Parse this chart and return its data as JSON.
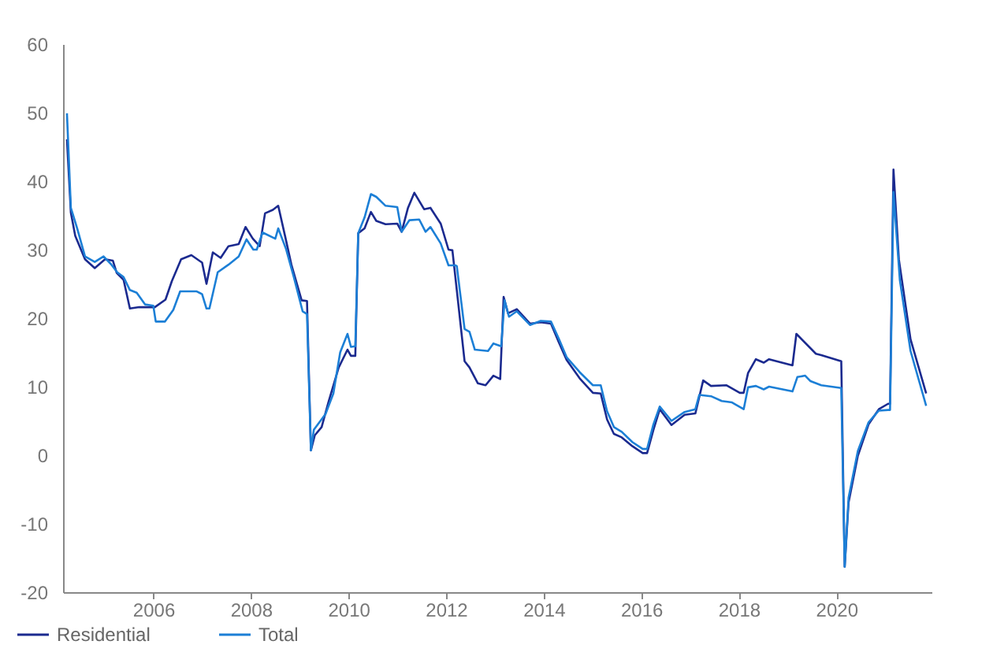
{
  "chart_data": {
    "type": "line",
    "xlim": [
      2004.15,
      2021.95
    ],
    "xticks": [
      2006,
      2008,
      2010,
      2012,
      2014,
      2016,
      2018,
      2020
    ],
    "ylim": [
      -20,
      60
    ],
    "yticks": [
      -20,
      -10,
      0,
      10,
      20,
      30,
      40,
      50,
      60
    ],
    "grid": false,
    "legend": "bottom left",
    "marker": "none",
    "line_style": "solid",
    "series": [
      {
        "name": "Residential",
        "color": "#1b2a8f",
        "x": [
          2004.23,
          2004.31,
          2004.4,
          2004.6,
          2004.8,
          2005.01,
          2005.17,
          2005.25,
          2005.39,
          2005.52,
          2005.71,
          2006.03,
          2006.25,
          2006.38,
          2006.57,
          2006.78,
          2007.0,
          2007.09,
          2007.22,
          2007.38,
          2007.54,
          2007.75,
          2007.89,
          2008.04,
          2008.18,
          2008.29,
          2008.45,
          2008.56,
          2008.7,
          2008.83,
          2009.04,
          2009.15,
          2009.23,
          2009.31,
          2009.45,
          2009.58,
          2009.8,
          2009.98,
          2010.05,
          2010.14,
          2010.2,
          2010.33,
          2010.46,
          2010.57,
          2010.76,
          2011.0,
          2011.09,
          2011.22,
          2011.35,
          2011.55,
          2011.68,
          2011.89,
          2012.05,
          2012.13,
          2012.22,
          2012.38,
          2012.48,
          2012.65,
          2012.81,
          2012.97,
          2013.11,
          2013.18,
          2013.27,
          2013.45,
          2013.72,
          2013.94,
          2014.15,
          2014.31,
          2014.47,
          2014.74,
          2015.01,
          2015.17,
          2015.3,
          2015.44,
          2015.6,
          2015.82,
          2016.03,
          2016.12,
          2016.25,
          2016.38,
          2016.62,
          2016.89,
          2017.11,
          2017.27,
          2017.43,
          2017.75,
          2018.02,
          2018.1,
          2018.19,
          2018.35,
          2018.51,
          2018.62,
          2019.1,
          2019.18,
          2019.58,
          2019.69,
          2020.1,
          2020.17,
          2020.25,
          2020.44,
          2020.66,
          2020.87,
          2021.06,
          2021.1,
          2021.17,
          2021.28,
          2021.52,
          2021.84
        ],
        "values": [
          46.1,
          35.4,
          32.0,
          28.6,
          27.3,
          28.6,
          28.4,
          26.6,
          25.6,
          21.4,
          21.6,
          21.6,
          22.7,
          25.4,
          28.6,
          29.2,
          28.1,
          25.0,
          29.6,
          28.8,
          30.5,
          30.8,
          33.3,
          31.6,
          30.5,
          35.3,
          35.8,
          36.4,
          32.0,
          27.8,
          22.6,
          22.5,
          0.7,
          2.9,
          4.1,
          7.5,
          12.8,
          15.4,
          14.5,
          14.5,
          32.4,
          33.1,
          35.5,
          34.2,
          33.7,
          33.8,
          32.6,
          36.1,
          38.3,
          35.9,
          36.1,
          33.8,
          30.0,
          29.9,
          24.1,
          13.7,
          12.8,
          10.5,
          10.2,
          11.6,
          11.1,
          23.1,
          20.7,
          21.3,
          19.2,
          19.4,
          19.2,
          16.5,
          13.9,
          11.2,
          9.1,
          9.0,
          5.2,
          3.1,
          2.6,
          1.3,
          0.3,
          0.3,
          3.7,
          6.7,
          4.4,
          5.9,
          6.1,
          10.9,
          10.1,
          10.2,
          9.1,
          9.1,
          12.0,
          14.0,
          13.5,
          14.0,
          13.1,
          17.7,
          14.8,
          14.6,
          13.7,
          -16.3,
          -6.9,
          -0.1,
          4.5,
          6.7,
          7.5,
          7.5,
          41.7,
          28.6,
          16.9,
          9.0
        ]
      },
      {
        "name": "Total",
        "color": "#1c7fd6",
        "x": [
          2004.23,
          2004.31,
          2004.44,
          2004.6,
          2004.8,
          2004.98,
          2005.13,
          2005.26,
          2005.39,
          2005.52,
          2005.66,
          2005.83,
          2006.0,
          2006.05,
          2006.24,
          2006.41,
          2006.55,
          2006.89,
          2007.0,
          2007.09,
          2007.15,
          2007.32,
          2007.54,
          2007.75,
          2007.91,
          2008.05,
          2008.12,
          2008.24,
          2008.5,
          2008.56,
          2008.72,
          2008.88,
          2009.06,
          2009.15,
          2009.23,
          2009.29,
          2009.53,
          2009.69,
          2009.83,
          2009.98,
          2010.05,
          2010.14,
          2010.2,
          2010.33,
          2010.46,
          2010.57,
          2010.76,
          2011.0,
          2011.09,
          2011.25,
          2011.45,
          2011.58,
          2011.68,
          2011.89,
          2012.05,
          2012.19,
          2012.22,
          2012.38,
          2012.48,
          2012.59,
          2012.86,
          2012.97,
          2013.13,
          2013.2,
          2013.29,
          2013.45,
          2013.72,
          2013.94,
          2014.15,
          2014.31,
          2014.47,
          2014.74,
          2015.01,
          2015.17,
          2015.3,
          2015.44,
          2015.6,
          2015.82,
          2016.03,
          2016.12,
          2016.25,
          2016.38,
          2016.62,
          2016.89,
          2017.11,
          2017.19,
          2017.43,
          2017.65,
          2017.86,
          2018.1,
          2018.19,
          2018.35,
          2018.51,
          2018.62,
          2019.1,
          2019.2,
          2019.36,
          2019.47,
          2019.69,
          2020.1,
          2020.17,
          2020.25,
          2020.44,
          2020.66,
          2020.87,
          2021.06,
          2021.1,
          2021.17,
          2021.3,
          2021.52,
          2021.84
        ],
        "values": [
          49.9,
          36.1,
          33.1,
          29.0,
          28.2,
          29.0,
          27.9,
          26.7,
          26.0,
          24.1,
          23.7,
          22.0,
          21.8,
          19.5,
          19.5,
          21.2,
          23.9,
          23.9,
          23.5,
          21.4,
          21.4,
          26.7,
          27.8,
          29.0,
          31.5,
          30.0,
          30.0,
          32.5,
          31.6,
          33.1,
          30.1,
          26.0,
          21.0,
          20.6,
          0.7,
          3.7,
          6.0,
          9.0,
          15.0,
          17.7,
          15.8,
          15.9,
          32.4,
          34.7,
          38.1,
          37.7,
          36.4,
          36.2,
          32.6,
          34.3,
          34.4,
          32.6,
          33.3,
          30.9,
          27.7,
          27.7,
          27.6,
          18.4,
          18.0,
          15.4,
          15.2,
          16.3,
          15.9,
          22.6,
          20.2,
          21.0,
          19.0,
          19.6,
          19.5,
          17.0,
          14.3,
          12.1,
          10.2,
          10.2,
          6.4,
          4.1,
          3.4,
          1.9,
          0.9,
          0.9,
          4.5,
          7.1,
          5.0,
          6.3,
          6.7,
          8.8,
          8.6,
          7.9,
          7.7,
          6.7,
          9.9,
          10.1,
          9.6,
          10.0,
          9.3,
          11.4,
          11.6,
          10.8,
          10.2,
          9.8,
          -16.3,
          -6.2,
          0.6,
          4.8,
          6.5,
          6.6,
          6.6,
          38.4,
          25.6,
          15.2,
          7.2
        ]
      }
    ]
  }
}
